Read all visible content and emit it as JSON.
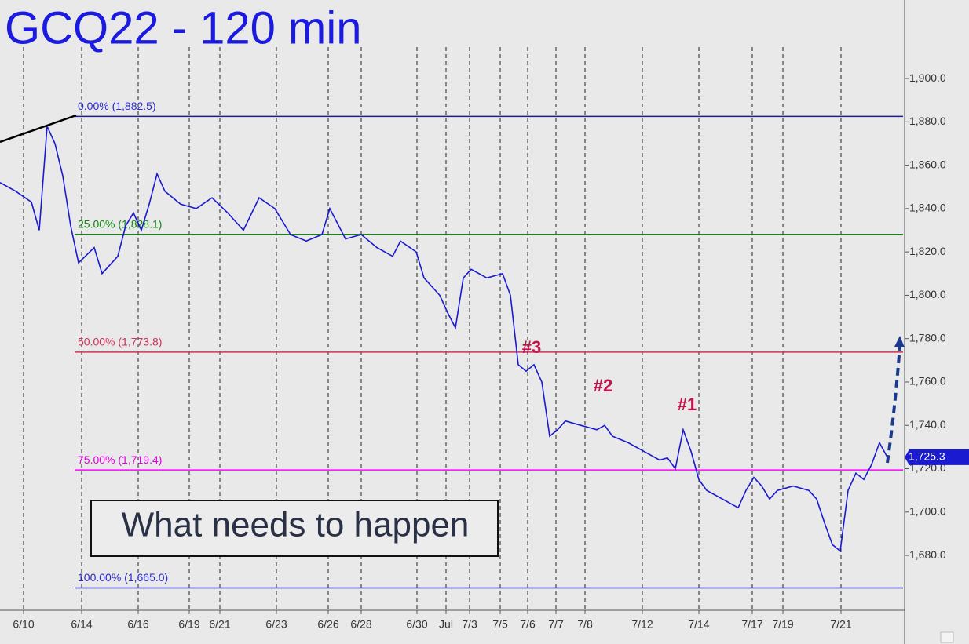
{
  "chart_data": {
    "type": "line",
    "title": "GCQ22 - 120 min",
    "series": [
      {
        "name": "GCQ22",
        "color": "#1a1ad0",
        "x": [
          0,
          2,
          4,
          5,
          6,
          7,
          8,
          9,
          10,
          12,
          13,
          15,
          16,
          17,
          18,
          19,
          20,
          21,
          23,
          25,
          27,
          29,
          31,
          33,
          35,
          37,
          39,
          41,
          42,
          44,
          46,
          48,
          50,
          51,
          53,
          54,
          56,
          57,
          58,
          59,
          60,
          62,
          64,
          65,
          66,
          67,
          68,
          69,
          70,
          71,
          72,
          74,
          76,
          77,
          78,
          80,
          82,
          84,
          85,
          86,
          87,
          88,
          89,
          90,
          92,
          94,
          95,
          96,
          97,
          98,
          99,
          101,
          103,
          104,
          105,
          106,
          107,
          108,
          109,
          110,
          111,
          112,
          113
        ],
        "values": [
          1852,
          1848,
          1843,
          1830,
          1878,
          1870,
          1855,
          1832,
          1815,
          1822,
          1810,
          1818,
          1832,
          1838,
          1830,
          1842,
          1856,
          1848,
          1842,
          1840,
          1845,
          1838,
          1830,
          1845,
          1840,
          1828,
          1825,
          1828,
          1840,
          1826,
          1828,
          1822,
          1818,
          1825,
          1820,
          1808,
          1800,
          1792,
          1785,
          1808,
          1812,
          1808,
          1810,
          1800,
          1768,
          1765,
          1768,
          1760,
          1735,
          1738,
          1742,
          1740,
          1738,
          1740,
          1735,
          1732,
          1728,
          1724,
          1725,
          1720,
          1738,
          1728,
          1715,
          1710,
          1706,
          1702,
          1710,
          1716,
          1712,
          1706,
          1710,
          1712,
          1710,
          1706,
          1695,
          1685,
          1682,
          1710,
          1718,
          1715,
          1722,
          1732,
          1725.3
        ]
      }
    ],
    "last_price": {
      "value": 1725.3,
      "label": "1,725.3"
    },
    "levels": [
      {
        "label": "0.00% (1,882.5)",
        "value": 1882.5,
        "color": "#1a1a9a",
        "text_color": "#2a2ad0"
      },
      {
        "label": "25.00% (1,828.1)",
        "value": 1828.1,
        "color": "#118811",
        "text_color": "#118811"
      },
      {
        "label": "50.00% (1,773.8)",
        "value": 1773.8,
        "color": "#d0305a",
        "text_color": "#d0305a"
      },
      {
        "label": "75.00% (1,719.4)",
        "value": 1719.4,
        "color": "#ff00ff",
        "text_color": "#e000e0"
      },
      {
        "label": "100.00% (1,665.0)",
        "value": 1665.0,
        "color": "#1a1a9a",
        "text_color": "#2a2ad0"
      }
    ],
    "annotations": [
      "#3",
      "#2",
      "#1"
    ],
    "callout": "What needs to happen",
    "xlim": [
      0,
      115
    ],
    "ylim": [
      1654.7,
      1936.2
    ],
    "yticks": [
      {
        "value": 1680,
        "label": "1,680.0"
      },
      {
        "value": 1700,
        "label": "1,700.0"
      },
      {
        "value": 1720,
        "label": "1,720.0"
      },
      {
        "value": 1740,
        "label": "1,740.0"
      },
      {
        "value": 1760,
        "label": "1,760.0"
      },
      {
        "value": 1780,
        "label": "1,780.0"
      },
      {
        "value": 1800,
        "label": "1,800.0"
      },
      {
        "value": 1820,
        "label": "1,820.0"
      },
      {
        "value": 1840,
        "label": "1,840.0"
      },
      {
        "value": 1860,
        "label": "1,860.0"
      },
      {
        "value": 1880,
        "label": "1,880.0"
      },
      {
        "value": 1900,
        "label": "1,900.0"
      }
    ],
    "xticks": [
      {
        "value": 3,
        "label": "6/10"
      },
      {
        "value": 10.4,
        "label": "6/14"
      },
      {
        "value": 17.6,
        "label": "6/16"
      },
      {
        "value": 24.1,
        "label": "6/19"
      },
      {
        "value": 28,
        "label": "6/21"
      },
      {
        "value": 35.2,
        "label": "6/23"
      },
      {
        "value": 41.8,
        "label": "6/26"
      },
      {
        "value": 46,
        "label": "6/28"
      },
      {
        "value": 53.1,
        "label": "6/30"
      },
      {
        "value": 56.8,
        "label": "Jul"
      },
      {
        "value": 59.8,
        "label": "7/3"
      },
      {
        "value": 63.7,
        "label": "7/5"
      },
      {
        "value": 67.2,
        "label": "7/6"
      },
      {
        "value": 70.8,
        "label": "7/7"
      },
      {
        "value": 74.5,
        "label": "7/8"
      },
      {
        "value": 81.8,
        "label": "7/12"
      },
      {
        "value": 89,
        "label": "7/14"
      },
      {
        "value": 95.8,
        "label": "7/17"
      },
      {
        "value": 99.7,
        "label": "7/19"
      },
      {
        "value": 107.1,
        "label": "7/21"
      }
    ],
    "grid": true
  }
}
